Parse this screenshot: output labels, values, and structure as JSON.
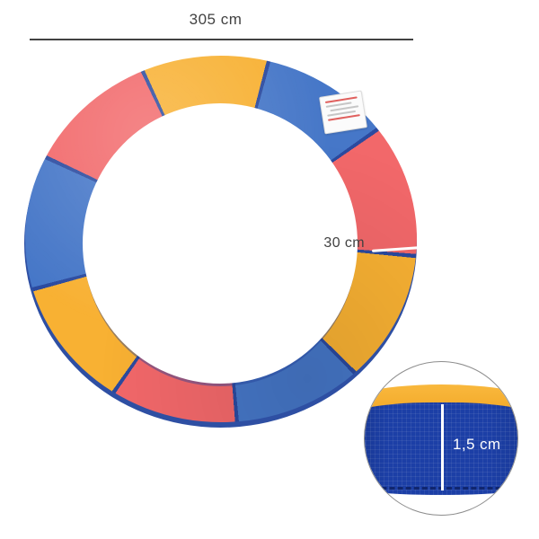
{
  "colors": {
    "yellow": "#f8b133",
    "blue": "#4677c8",
    "red": "#f2686a",
    "seam": "#2b4a9f",
    "underside": "#2e4fa3",
    "fabric": "#1c3fa6",
    "band": "#f9b83d",
    "stitch": "#0d2263",
    "measure": "#424242",
    "circle_border": "#8d8d8d"
  },
  "measurements": {
    "diameter": "305 cm",
    "pad_width": "30 cm",
    "thickness": "1,5 cm"
  },
  "ring": {
    "segments_clockwise_from_top": [
      "yellow",
      "blue",
      "red",
      "yellow",
      "blue",
      "red",
      "yellow",
      "blue",
      "red"
    ],
    "start_angle_deg": -25,
    "segment_span_deg": 40,
    "seam_half_width_deg": 0.6
  }
}
